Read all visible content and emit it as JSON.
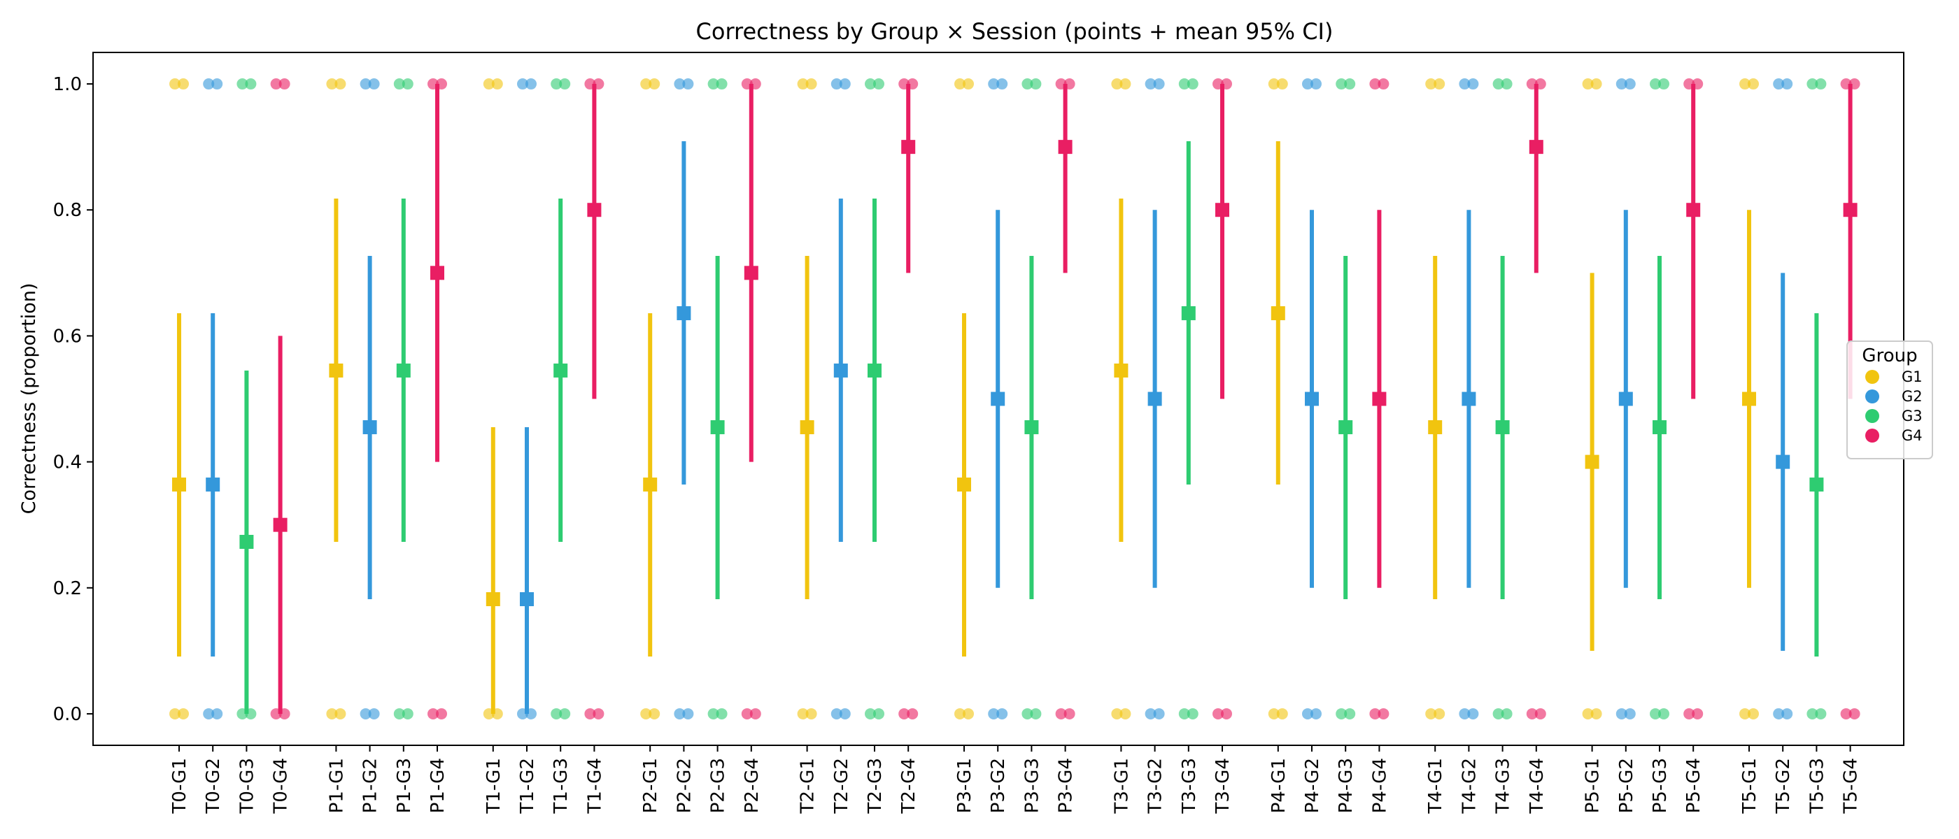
{
  "chart_data": {
    "type": "scatter",
    "title": "Correctness by Group × Session (points + mean 95% CI)",
    "ylabel": "Correctness (proportion)",
    "xlabel": "",
    "ylim": [
      -0.05,
      1.05
    ],
    "yticks": [
      0.0,
      0.2,
      0.4,
      0.6,
      0.8,
      1.0
    ],
    "ytick_labels": [
      "0.0",
      "0.2",
      "0.4",
      "0.6",
      "0.8",
      "1.0"
    ],
    "grid": false,
    "legend": {
      "title": "Group",
      "placement": "center-right"
    },
    "groups": [
      {
        "name": "G1",
        "color": "#f1c40f"
      },
      {
        "name": "G2",
        "color": "#3498db"
      },
      {
        "name": "G3",
        "color": "#2ecc71"
      },
      {
        "name": "G4",
        "color": "#e91e63"
      }
    ],
    "sessions": [
      "T0",
      "P1",
      "T1",
      "P2",
      "T2",
      "P3",
      "T3",
      "P4",
      "T4",
      "P5",
      "T5"
    ],
    "categories": [
      "T0-G1",
      "T0-G2",
      "T0-G3",
      "T0-G4",
      "P1-G1",
      "P1-G2",
      "P1-G3",
      "P1-G4",
      "T1-G1",
      "T1-G2",
      "T1-G3",
      "T1-G4",
      "P2-G1",
      "P2-G2",
      "P2-G3",
      "P2-G4",
      "T2-G1",
      "T2-G2",
      "T2-G3",
      "T2-G4",
      "P3-G1",
      "P3-G2",
      "P3-G3",
      "P3-G4",
      "T3-G1",
      "T3-G2",
      "T3-G3",
      "T3-G4",
      "P4-G1",
      "P4-G2",
      "P4-G3",
      "P4-G4",
      "T4-G1",
      "T4-G2",
      "T4-G3",
      "T4-G4",
      "P5-G1",
      "P5-G2",
      "P5-G3",
      "P5-G4",
      "T5-G1",
      "T5-G2",
      "T5-G3",
      "T5-G4"
    ],
    "mean": [
      0.364,
      0.364,
      0.273,
      0.3,
      0.545,
      0.455,
      0.545,
      0.7,
      0.182,
      0.182,
      0.545,
      0.8,
      0.364,
      0.636,
      0.455,
      0.7,
      0.455,
      0.545,
      0.545,
      0.9,
      0.364,
      0.5,
      0.455,
      0.9,
      0.545,
      0.5,
      0.636,
      0.8,
      0.636,
      0.5,
      0.455,
      0.5,
      0.455,
      0.5,
      0.455,
      0.9,
      0.4,
      0.5,
      0.455,
      0.8,
      0.5,
      0.4,
      0.364,
      0.8
    ],
    "ci_low": [
      0.091,
      0.091,
      0.0,
      0.0,
      0.273,
      0.182,
      0.273,
      0.4,
      0.0,
      0.0,
      0.273,
      0.5,
      0.091,
      0.364,
      0.182,
      0.4,
      0.182,
      0.273,
      0.273,
      0.7,
      0.091,
      0.2,
      0.182,
      0.7,
      0.273,
      0.2,
      0.364,
      0.5,
      0.364,
      0.2,
      0.182,
      0.2,
      0.182,
      0.2,
      0.182,
      0.7,
      0.1,
      0.2,
      0.182,
      0.5,
      0.2,
      0.1,
      0.091,
      0.5
    ],
    "ci_high": [
      0.636,
      0.636,
      0.545,
      0.6,
      0.818,
      0.727,
      0.818,
      1.0,
      0.455,
      0.455,
      0.818,
      1.0,
      0.636,
      0.909,
      0.727,
      1.0,
      0.727,
      0.818,
      0.818,
      1.0,
      0.636,
      0.8,
      0.727,
      1.0,
      0.818,
      0.8,
      0.909,
      1.0,
      0.909,
      0.8,
      0.727,
      0.8,
      0.727,
      0.8,
      0.727,
      1.0,
      0.7,
      0.8,
      0.727,
      1.0,
      0.8,
      0.7,
      0.636,
      1.0
    ],
    "points_at": [
      0,
      1
    ]
  }
}
